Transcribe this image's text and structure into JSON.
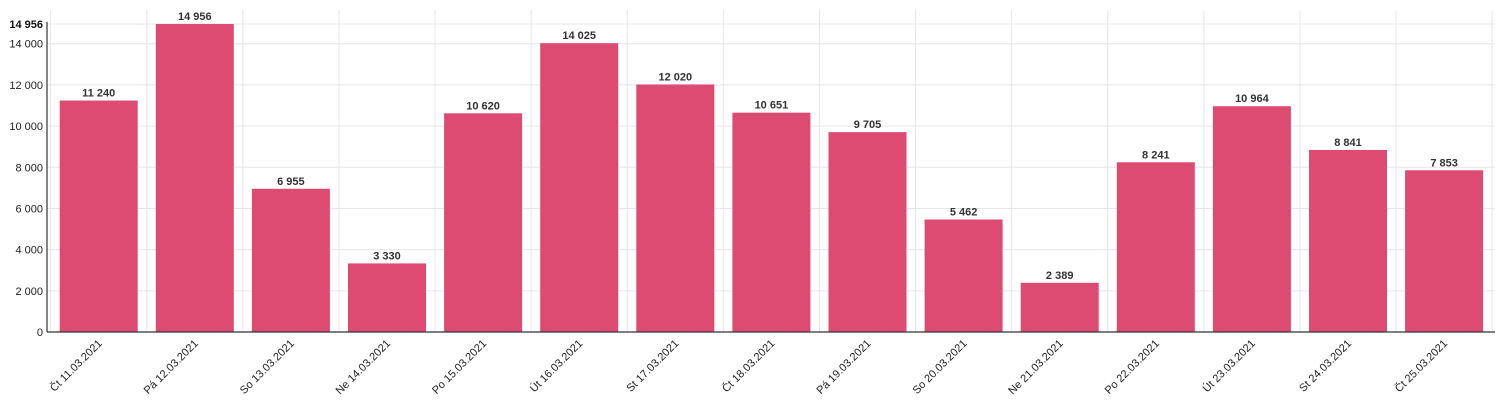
{
  "chart_data": {
    "type": "bar",
    "categories": [
      "Čt 11.03.2021",
      "Pá 12.03.2021",
      "So 13.03.2021",
      "Ne 14.03.2021",
      "Po 15.03.2021",
      "Út 16.03.2021",
      "St 17.03.2021",
      "Čt 18.03.2021",
      "Pá 19.03.2021",
      "So 20.03.2021",
      "Ne 21.03.2021",
      "Po 22.03.2021",
      "Út 23.03.2021",
      "St 24.03.2021",
      "Čt 25.03.2021"
    ],
    "values": [
      11240,
      14956,
      6955,
      3330,
      10620,
      14025,
      12020,
      10651,
      9705,
      5462,
      2389,
      8241,
      10964,
      8841,
      7853
    ],
    "value_labels": [
      "11 240",
      "14 956",
      "6 955",
      "3 330",
      "10 620",
      "14 025",
      "12 020",
      "10 651",
      "9 705",
      "5 462",
      "2 389",
      "8 241",
      "10 964",
      "8 841",
      "7 853"
    ],
    "y_ticks": [
      0,
      2000,
      4000,
      6000,
      8000,
      10000,
      12000,
      14000
    ],
    "y_tick_labels": [
      "0",
      "2 000",
      "4 000",
      "6 000",
      "8 000",
      "10 000",
      "12 000",
      "14 000"
    ],
    "y_max_value": 14956,
    "y_max_label": "14 956",
    "ylim": [
      0,
      14956
    ],
    "title": "",
    "xlabel": "",
    "ylabel": "",
    "grid": true,
    "legend": "none",
    "bar_color": "#dc4770"
  }
}
